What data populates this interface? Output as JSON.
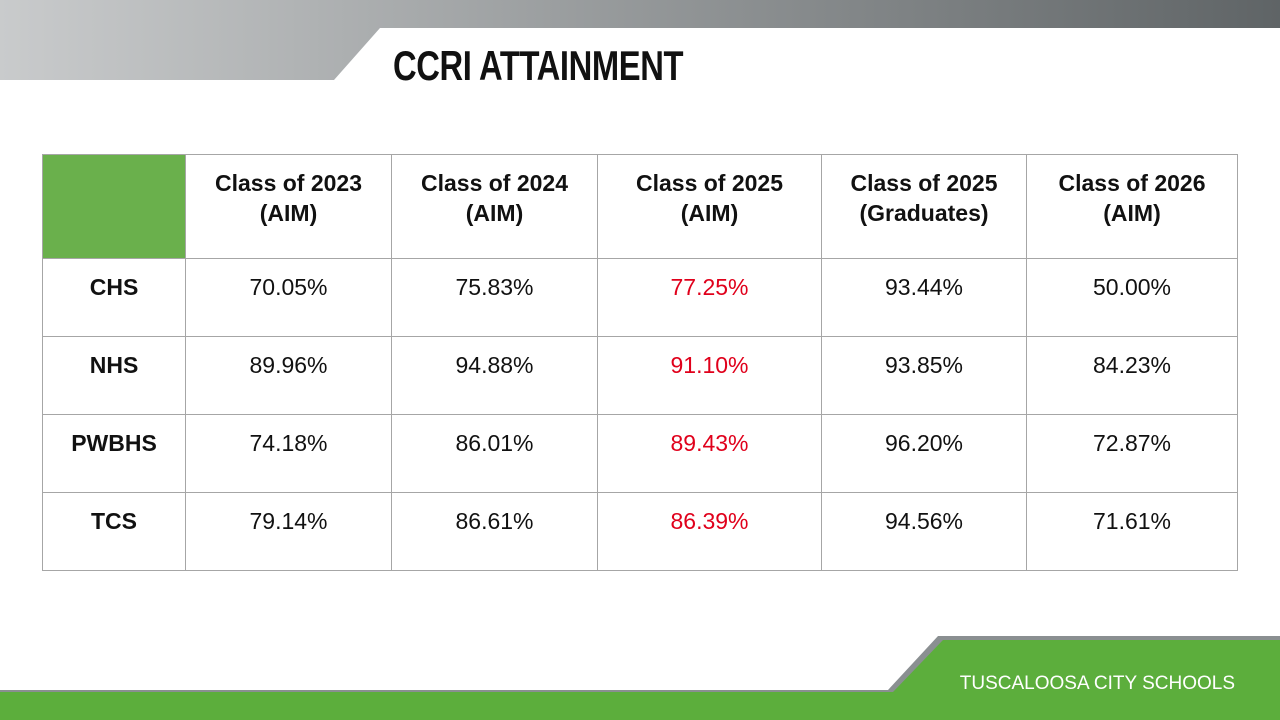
{
  "header": {
    "title": "CCRI ATTAINMENT"
  },
  "table": {
    "columns": [
      [
        "Class of 2023",
        "(AIM)"
      ],
      [
        "Class of 2024",
        "(AIM)"
      ],
      [
        "Class of 2025",
        "(AIM)"
      ],
      [
        "Class of 2025",
        "(Graduates)"
      ],
      [
        "Class of 2026",
        "(AIM)"
      ]
    ],
    "rows": [
      [
        "CHS",
        "70.05%",
        "75.83%",
        "77.25%",
        "93.44%",
        "50.00%"
      ],
      [
        "NHS",
        "89.96%",
        "94.88%",
        "91.10%",
        "93.85%",
        "84.23%"
      ],
      [
        "PWBHS",
        "74.18%",
        "86.01%",
        "89.43%",
        "96.20%",
        "72.87%"
      ],
      [
        "TCS",
        "79.14%",
        "86.61%",
        "86.39%",
        "94.56%",
        "71.61%"
      ]
    ]
  },
  "footer": {
    "text": "TUSCALOOSA CITY SCHOOLS"
  }
}
